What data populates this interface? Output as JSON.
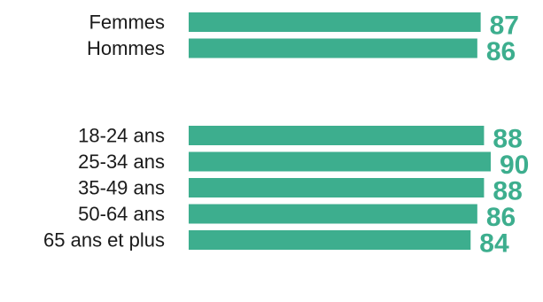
{
  "chart_data": {
    "type": "bar",
    "orientation": "horizontal",
    "groups": [
      {
        "categories": [
          "Femmes",
          "Hommes"
        ],
        "values": [
          87,
          86
        ]
      },
      {
        "categories": [
          "18-24 ans",
          "25-34 ans",
          "35-49 ans",
          "50-64 ans",
          "65 ans et plus"
        ],
        "values": [
          88,
          90,
          88,
          86,
          84
        ]
      }
    ],
    "title": "",
    "xlabel": "",
    "ylabel": "",
    "grid": false,
    "legend": "none",
    "bar_color": "#3dae8e",
    "value_label_color": "#3dae8e"
  }
}
